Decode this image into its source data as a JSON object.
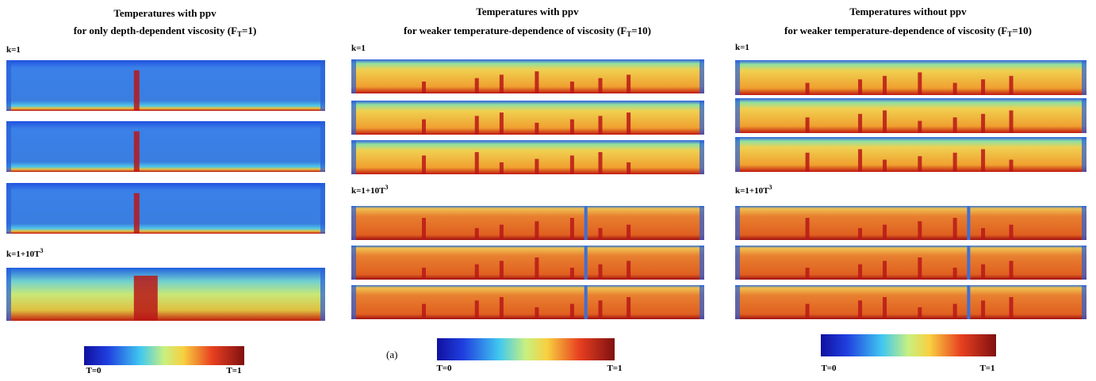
{
  "figure": {
    "label": "(a)",
    "panels": [
      {
        "title": {
          "line1": "Temperatures with ppv",
          "line2": "for only depth-dependent viscosity (F",
          "sub": "T",
          "end": "=1)"
        },
        "group1": "k=1",
        "group2": {
          "text": "k=1+10T",
          "sup": "3"
        },
        "colorbar": {
          "min": "T=0",
          "max": "T=1"
        }
      },
      {
        "title": {
          "line1": "Temperatures with ppv",
          "line2": "for weaker temperature-dependence of viscosity (F",
          "sub": "T",
          "end": "=10)"
        },
        "group1": "k=1",
        "group2": {
          "text": "k=1+10T",
          "sup": "3"
        },
        "colorbar": {
          "min": "T=0",
          "max": "T=1"
        }
      },
      {
        "title": {
          "line1": "Temperatures without ppv",
          "line2": "for weaker temperature-dependence of viscosity (F",
          "sub": "T",
          "end": "=10)"
        },
        "group1": "k=1",
        "group2": {
          "text": "k=1+10T",
          "sup": "3"
        },
        "colorbar": {
          "min": "T=0",
          "max": "T=1"
        }
      }
    ]
  }
}
